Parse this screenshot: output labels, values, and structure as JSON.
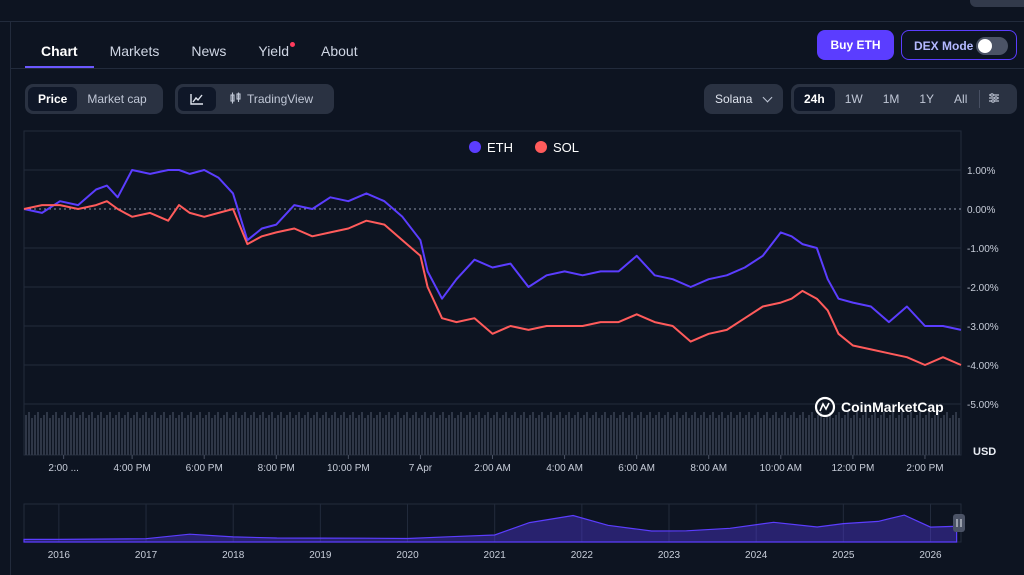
{
  "tabs": [
    {
      "label": "Chart",
      "active": true
    },
    {
      "label": "Markets",
      "active": false
    },
    {
      "label": "News",
      "active": false
    },
    {
      "label": "Yield",
      "active": false,
      "badge": true
    },
    {
      "label": "About",
      "active": false
    }
  ],
  "header_actions": {
    "buy_label": "Buy ETH",
    "dex_label": "DEX Mode",
    "dex_enabled": false
  },
  "view_toggle": {
    "options": [
      "Price",
      "Market cap"
    ],
    "selected": "Price"
  },
  "chart_style": {
    "line_icon": "line-chart-icon",
    "tradingview_icon": "candlestick-icon",
    "tradingview_label": "TradingView"
  },
  "compare_select": {
    "value": "Solana"
  },
  "ranges": {
    "options": [
      "24h",
      "1W",
      "1M",
      "1Y",
      "All"
    ],
    "selected": "24h",
    "settings_icon": "sliders-icon"
  },
  "colors": {
    "eth": "#5b3dff",
    "sol": "#ff5b5b",
    "background": "#0d1421"
  },
  "watermark": {
    "text": "CoinMarketCap",
    "icon": "coinmarketcap-logo-icon"
  },
  "chart_data": {
    "type": "line",
    "legend": [
      {
        "name": "ETH",
        "color": "#5b3dff"
      },
      {
        "name": "SOL",
        "color": "#ff5b5b"
      }
    ],
    "legend_position": "top-center",
    "y_unit_label": "USD",
    "y_ticks": [
      "1.00%",
      "0.00%",
      "-1.00%",
      "-2.00%",
      "-3.00%",
      "-4.00%",
      "-5.00%"
    ],
    "y_tick_values": [
      1,
      0,
      -1,
      -2,
      -3,
      -4,
      -5
    ],
    "ylim": [
      -5,
      1.5
    ],
    "x_ticks": [
      "2:00 ...",
      "4:00 PM",
      "6:00 PM",
      "8:00 PM",
      "10:00 PM",
      "7 Apr",
      "2:00 AM",
      "4:00 AM",
      "6:00 AM",
      "8:00 AM",
      "10:00 AM",
      "12:00 PM",
      "2:00 PM"
    ],
    "x_tick_hours": [
      1.1,
      3,
      5,
      7,
      9,
      11,
      13,
      15,
      17,
      19,
      21,
      23,
      25
    ],
    "x_hours": [
      0,
      0.5,
      1,
      1.5,
      2,
      2.3,
      2.6,
      3,
      3.5,
      4,
      4.3,
      4.6,
      5,
      5.4,
      5.8,
      6.2,
      6.6,
      7,
      7.5,
      8,
      8.5,
      9,
      9.5,
      10,
      10.5,
      11,
      11.2,
      11.6,
      12,
      12.5,
      13,
      13.5,
      14,
      14.5,
      15,
      15.5,
      16,
      16.5,
      17,
      17.5,
      18,
      18.5,
      19,
      19.5,
      20,
      20.5,
      21,
      21.3,
      21.6,
      22,
      22.3,
      22.6,
      23,
      23.5,
      24,
      24.5,
      25,
      25.5,
      26
    ],
    "series": [
      {
        "name": "ETH",
        "values": [
          0,
          -0.1,
          0.2,
          0.1,
          0.5,
          0.6,
          0.3,
          1.0,
          0.9,
          1.0,
          1.0,
          0.9,
          1.0,
          0.8,
          0.4,
          -0.8,
          -0.5,
          -0.4,
          0.1,
          0.0,
          0.3,
          0.2,
          0.4,
          0.2,
          -0.2,
          -0.8,
          -1.6,
          -2.3,
          -1.8,
          -1.3,
          -1.5,
          -1.4,
          -2.0,
          -1.7,
          -1.6,
          -1.7,
          -1.6,
          -1.6,
          -1.2,
          -1.7,
          -1.8,
          -2.0,
          -1.8,
          -1.7,
          -1.5,
          -1.2,
          -0.6,
          -0.7,
          -0.9,
          -1.0,
          -1.8,
          -2.3,
          -2.4,
          -2.5,
          -2.9,
          -2.5,
          -3.0,
          -3.0,
          -3.1
        ]
      },
      {
        "name": "SOL",
        "values": [
          0,
          0.1,
          0.1,
          0,
          0.1,
          0.2,
          0.0,
          -0.2,
          -0.1,
          -0.3,
          0.1,
          -0.1,
          -0.2,
          -0.1,
          0.0,
          -0.9,
          -0.7,
          -0.6,
          -0.5,
          -0.7,
          -0.6,
          -0.5,
          -0.3,
          -0.4,
          -0.8,
          -1.2,
          -2.0,
          -2.8,
          -2.9,
          -2.8,
          -3.2,
          -3.0,
          -3.1,
          -3.0,
          -3.0,
          -3.0,
          -2.9,
          -2.9,
          -2.7,
          -2.9,
          -3.0,
          -3.4,
          -3.2,
          -3.1,
          -2.8,
          -2.5,
          -2.4,
          -2.3,
          -2.1,
          -2.3,
          -2.6,
          -3.2,
          -3.5,
          -3.6,
          -3.7,
          -3.8,
          -4.0,
          -3.8,
          -4.0
        ]
      }
    ],
    "navigator": {
      "x_ticks": [
        "2016",
        "2017",
        "2018",
        "2019",
        "2020",
        "2021",
        "2022",
        "2023",
        "2024",
        "2025",
        "2026"
      ],
      "years": [
        2015.6,
        2016,
        2017,
        2017.5,
        2018,
        2018.5,
        2019,
        2019.5,
        2020,
        2020.5,
        2021,
        2021.4,
        2021.9,
        2022.3,
        2022.8,
        2023.2,
        2023.7,
        2024.2,
        2024.7,
        2025,
        2025.4,
        2025.7,
        2026,
        2026.3
      ],
      "values": [
        0.02,
        0.02,
        0.05,
        0.2,
        0.12,
        0.06,
        0.08,
        0.05,
        0.07,
        0.1,
        0.2,
        0.6,
        0.9,
        0.5,
        0.35,
        0.3,
        0.45,
        0.6,
        0.5,
        0.55,
        0.7,
        0.85,
        0.5,
        0.45
      ]
    }
  }
}
